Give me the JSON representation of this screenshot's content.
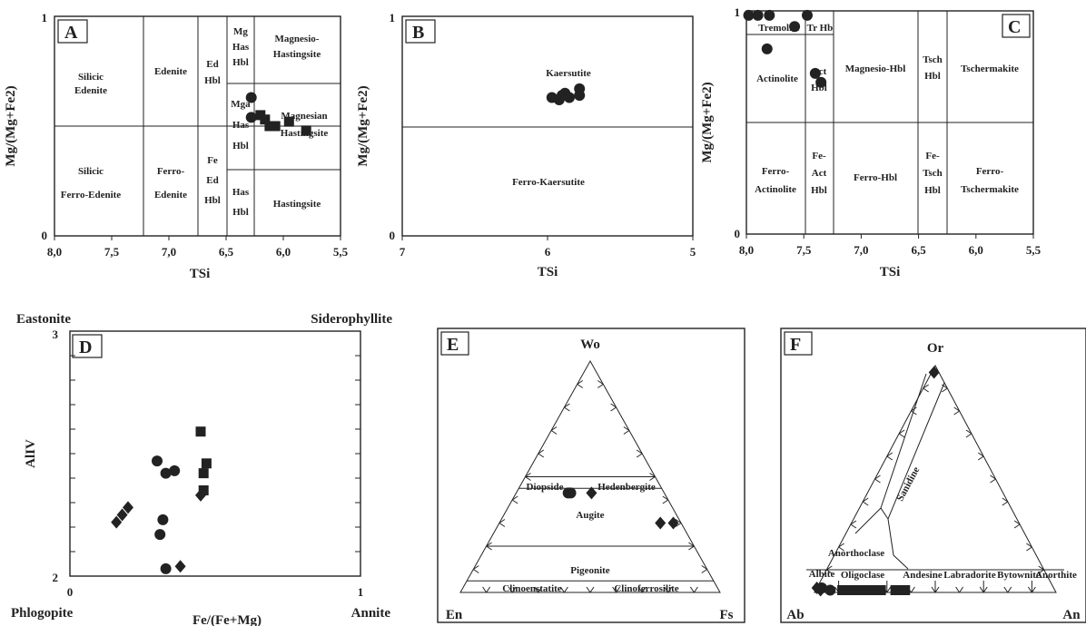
{
  "panels": {
    "A": {
      "letter": "A",
      "ylabel": "Mg/(Mg+Fe2)",
      "xlabel": "TSi",
      "xticks": [
        "8,0",
        "7,5",
        "7,0",
        "6,5",
        "6,0",
        "5,5"
      ],
      "y0": "0",
      "y1": "1",
      "fields": [
        [
          "Silicic",
          "Edenite"
        ],
        [
          "Edenite"
        ],
        [
          "Ed",
          "Hbl"
        ],
        [
          "Mg",
          "Has",
          "Hbl"
        ],
        [
          "Magnesio-",
          "Hastingsite"
        ],
        [
          "Mga",
          "Has",
          "Hbl"
        ],
        [
          "Magnesian",
          "Hastingsite"
        ],
        [
          "Silicic",
          "Ferro-Edenite"
        ],
        [
          "Ferro-",
          "Edenite"
        ],
        [
          "Fe",
          "Ed",
          "Hbl"
        ],
        [
          "Has",
          "Hbl"
        ],
        [
          "Hastingsite"
        ]
      ]
    },
    "B": {
      "letter": "B",
      "ylabel": "Mg/(Mg+Fe2)",
      "xlabel": "TSi",
      "xticks": [
        "7",
        "6",
        "5"
      ],
      "y0": "0",
      "y1": "1",
      "fields": [
        [
          "Kaersutite"
        ],
        [
          "Ferro-Kaersutite"
        ]
      ]
    },
    "C": {
      "letter": "C",
      "ylabel": "Mg/(Mg+Fe2)",
      "xlabel": "TSi",
      "xticks": [
        "8,0",
        "7,5",
        "7,0",
        "6,5",
        "6,0",
        "5,5"
      ],
      "y0": "0",
      "y1": "1",
      "fields": [
        [
          "Tremolite"
        ],
        [
          "Tr Hb"
        ],
        [
          "Actinolite"
        ],
        [
          "Act",
          "Hbl"
        ],
        [
          "Magnesio-Hbl"
        ],
        [
          "Tsch",
          "Hbl"
        ],
        [
          "Tschermakite"
        ],
        [
          "Ferro-",
          "Actinolite"
        ],
        [
          "Fe-",
          "Act",
          "Hbl"
        ],
        [
          "Ferro-Hbl"
        ],
        [
          "Fe-",
          "Tsch",
          "Hbl"
        ],
        [
          "Ferro-",
          "Tschermakite"
        ]
      ]
    },
    "D": {
      "letter": "D",
      "ylabel": "AlIV",
      "xlabel": "Fe/(Fe+Mg)",
      "xticks": [
        "0",
        "1"
      ],
      "y0": "2",
      "y1": "3",
      "corners": [
        "Eastonite",
        "Siderophyllite",
        "Phlogopite",
        "Annite"
      ]
    },
    "E": {
      "letter": "E",
      "apices": [
        "Wo",
        "En",
        "Fs"
      ],
      "fields": [
        "Diopside",
        "Hedenbergite",
        "Augite",
        "Pigeonite",
        "Clinoenstatite",
        "Clinoferrosilite"
      ]
    },
    "F": {
      "letter": "F",
      "apices": [
        "Or",
        "Ab",
        "An"
      ],
      "fields": [
        "Sanidine",
        "Anorthoclase",
        "Albite",
        "Oligoclase",
        "Andesine",
        "Labradorite",
        "Bytownite",
        "Anorthite"
      ]
    }
  },
  "chart_data": [
    {
      "type": "scatter",
      "panel": "A",
      "xlabel": "TSi",
      "ylabel": "Mg/(Mg+Fe2)",
      "xlim": [
        8.0,
        5.5
      ],
      "ylim": [
        0,
        1
      ],
      "series": [
        {
          "marker": "circle",
          "x": [
            6.28,
            6.28
          ],
          "y": [
            0.63,
            0.54
          ]
        },
        {
          "marker": "square",
          "x": [
            6.2,
            6.16,
            6.12,
            6.07,
            5.95,
            5.8
          ],
          "y": [
            0.55,
            0.53,
            0.5,
            0.5,
            0.52,
            0.48
          ]
        }
      ]
    },
    {
      "type": "scatter",
      "panel": "B",
      "xlabel": "TSi",
      "ylabel": "Mg/(Mg+Fe2)",
      "xlim": [
        7,
        5
      ],
      "ylim": [
        0,
        1
      ],
      "series": [
        {
          "marker": "circle",
          "x": [
            5.97,
            5.92,
            5.9,
            5.88,
            5.85,
            5.78,
            5.78
          ],
          "y": [
            0.63,
            0.62,
            0.64,
            0.65,
            0.63,
            0.67,
            0.64
          ]
        }
      ]
    },
    {
      "type": "scatter",
      "panel": "C",
      "xlabel": "TSi",
      "ylabel": "Mg/(Mg+Fe2)",
      "xlim": [
        8.0,
        5.5
      ],
      "ylim": [
        0,
        1
      ],
      "series": [
        {
          "marker": "circle",
          "x": [
            7.98,
            7.9,
            7.8,
            7.58,
            7.47,
            7.82,
            7.35,
            7.4
          ],
          "y": [
            0.98,
            0.98,
            0.98,
            0.93,
            0.98,
            0.83,
            0.68,
            0.72
          ]
        }
      ]
    },
    {
      "type": "scatter",
      "panel": "D",
      "xlabel": "Fe/(Fe+Mg)",
      "ylabel": "AlIV",
      "xlim": [
        0,
        1
      ],
      "ylim": [
        2,
        3
      ],
      "series": [
        {
          "marker": "circle",
          "x": [
            0.3,
            0.33,
            0.36,
            0.32,
            0.31,
            0.33
          ],
          "y": [
            2.47,
            2.42,
            2.43,
            2.23,
            2.17,
            2.03
          ]
        },
        {
          "marker": "square",
          "x": [
            0.45,
            0.47,
            0.46,
            0.46
          ],
          "y": [
            2.59,
            2.46,
            2.42,
            2.35
          ]
        },
        {
          "marker": "diamond",
          "x": [
            0.2,
            0.18,
            0.16,
            0.45,
            0.38
          ],
          "y": [
            2.28,
            2.25,
            2.22,
            2.33,
            2.04
          ]
        }
      ]
    },
    {
      "type": "scatter",
      "panel": "E",
      "ternary": [
        "Wo",
        "En",
        "Fs"
      ],
      "series": [
        {
          "marker": "circle",
          "wo": [
            0.43,
            0.43
          ],
          "en": [
            0.37,
            0.36
          ],
          "fs": [
            0.2,
            0.21
          ]
        },
        {
          "marker": "diamond",
          "wo": [
            0.43,
            0.3,
            0.3
          ],
          "en": [
            0.28,
            0.08,
            0.03
          ],
          "fs": [
            0.29,
            0.62,
            0.67
          ]
        }
      ]
    },
    {
      "type": "scatter",
      "panel": "F",
      "ternary": [
        "Or",
        "Ab",
        "An"
      ],
      "series": [
        {
          "marker": "diamond",
          "or": [
            0.97,
            0.02,
            0.01
          ],
          "ab": [
            0.02,
            0.98,
            0.97
          ],
          "an": [
            0.01,
            0.0,
            0.02
          ]
        },
        {
          "marker": "square",
          "or": [
            0.01,
            0.01,
            0.01,
            0.01,
            0.01,
            0.01,
            0.01,
            0.01,
            0.01
          ],
          "ab": [
            0.88,
            0.85,
            0.82,
            0.79,
            0.76,
            0.72,
            0.66,
            0.64,
            0.62
          ],
          "an": [
            0.11,
            0.14,
            0.17,
            0.2,
            0.23,
            0.27,
            0.33,
            0.35,
            0.37
          ]
        },
        {
          "marker": "circle",
          "or": [
            0.02,
            0.01
          ],
          "ab": [
            0.96,
            0.93
          ],
          "an": [
            0.02,
            0.06
          ]
        }
      ]
    }
  ]
}
